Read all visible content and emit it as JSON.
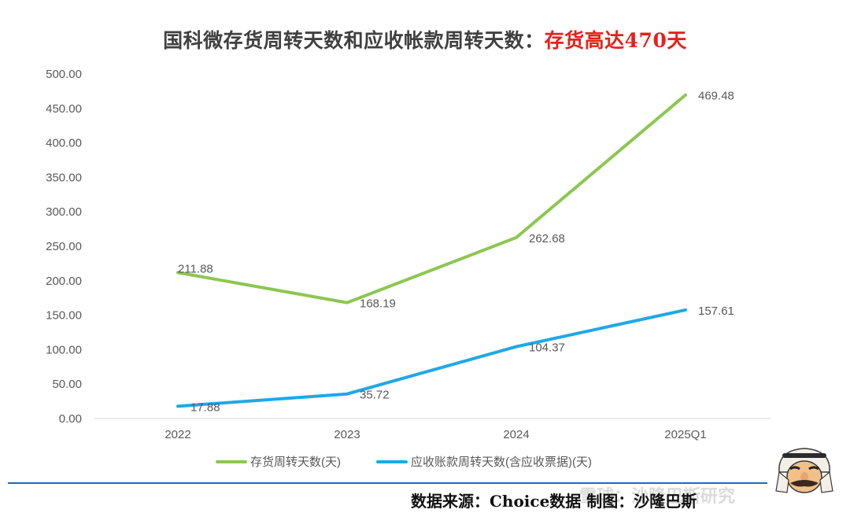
{
  "title": "国科微存货周转天数和应收帐款周转天数：",
  "title_accent": "存货高达470天",
  "source": "数据来源：Choice数据   制图：沙隆巴斯",
  "watermark": "雪球：沙隆巴斯研究",
  "colors": {
    "series1": "#8cc751",
    "series2": "#1fa8e8",
    "accent": "#e8201a",
    "rule": "#2e63b8"
  },
  "chart_data": {
    "type": "line",
    "categories": [
      "2022",
      "2023",
      "2024",
      "2025Q1"
    ],
    "ylim": [
      0,
      500
    ],
    "yticks": [
      "0.00",
      "50.00",
      "100.00",
      "150.00",
      "200.00",
      "250.00",
      "300.00",
      "350.00",
      "400.00",
      "450.00",
      "500.00"
    ],
    "grid": false,
    "legend": "bottom",
    "series": [
      {
        "name": "存货周转天数(天)",
        "values": [
          211.88,
          168.19,
          262.68,
          469.48
        ],
        "labels": [
          "211.88",
          "168.19",
          "262.68",
          "469.48"
        ]
      },
      {
        "name": "应收账款周转天数(含应收票据)(天)",
        "values": [
          17.88,
          35.72,
          104.37,
          157.61
        ],
        "labels": [
          "17.88",
          "35.72",
          "104.37",
          "157.61"
        ]
      }
    ]
  }
}
